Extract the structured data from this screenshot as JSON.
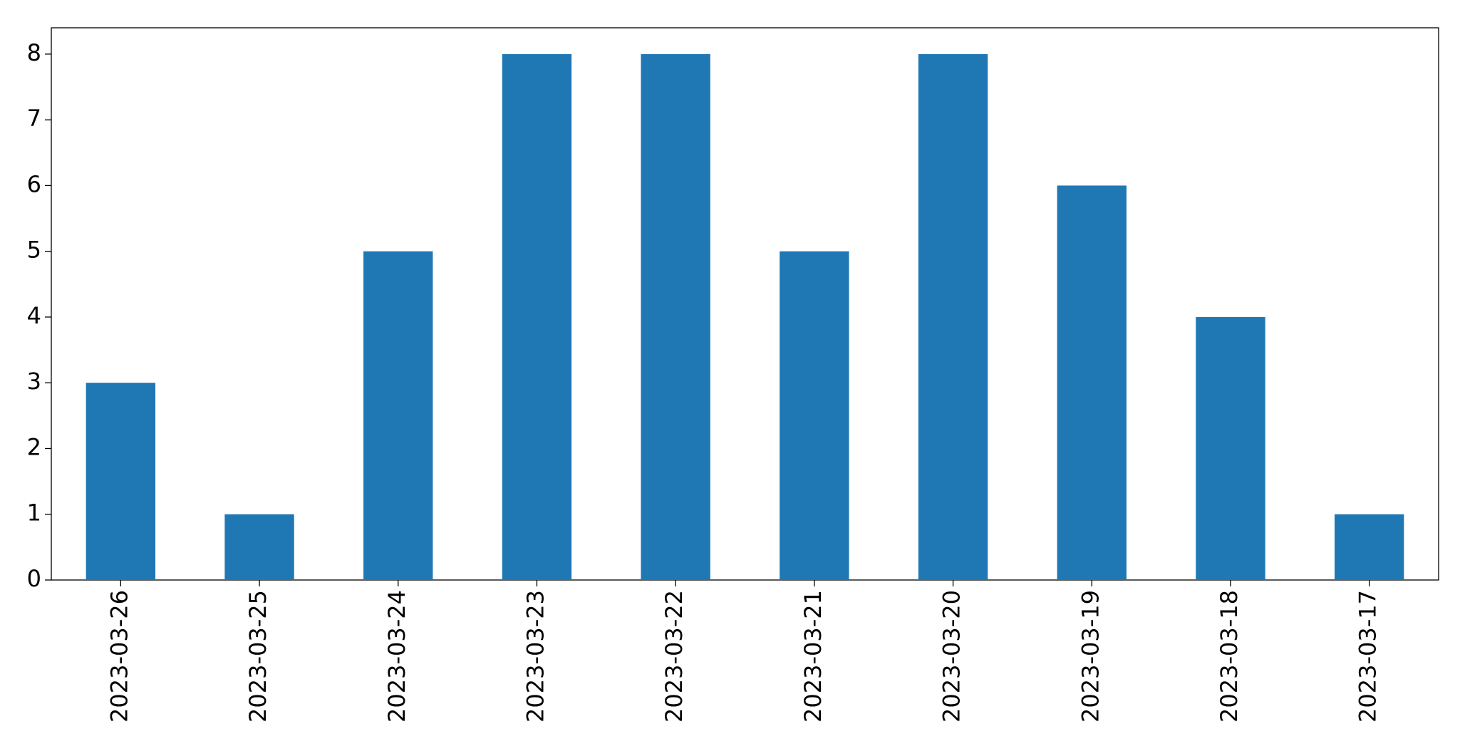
{
  "chart_data": {
    "type": "bar",
    "categories": [
      "2023-03-26",
      "2023-03-25",
      "2023-03-24",
      "2023-03-23",
      "2023-03-22",
      "2023-03-21",
      "2023-03-20",
      "2023-03-19",
      "2023-03-18",
      "2023-03-17"
    ],
    "values": [
      3,
      1,
      5,
      8,
      8,
      5,
      8,
      6,
      4,
      1
    ],
    "color": "#1f77b4",
    "ylim": [
      0,
      8.4
    ],
    "yticks": [
      0,
      1,
      2,
      3,
      4,
      5,
      6,
      7,
      8
    ],
    "grid": false
  }
}
